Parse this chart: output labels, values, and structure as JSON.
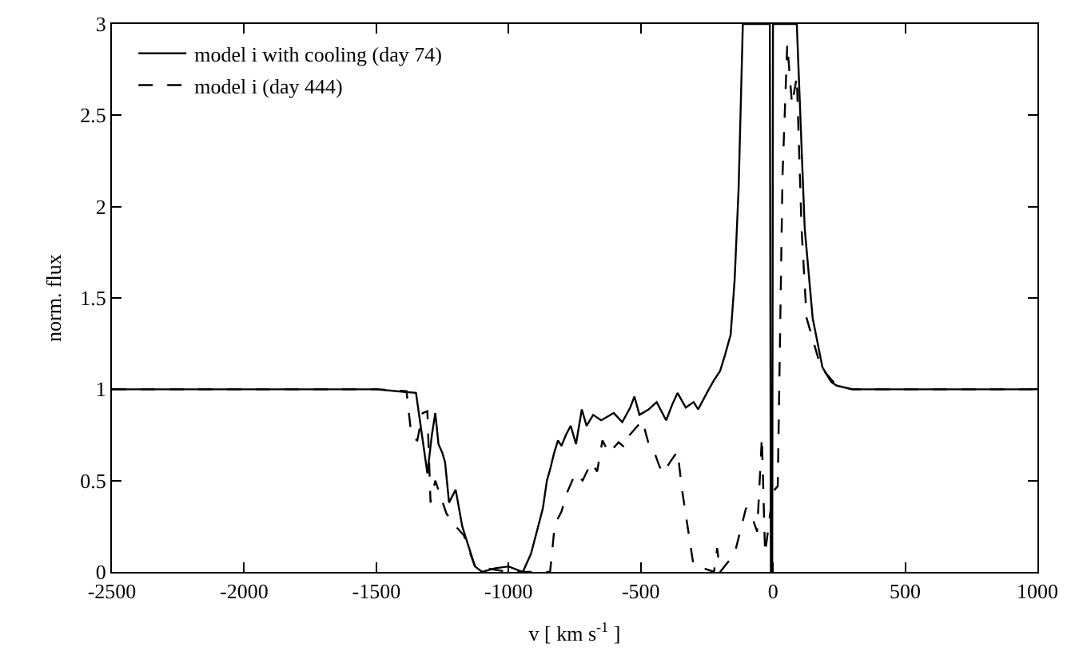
{
  "chart_data": {
    "type": "line",
    "xlabel": "v [ km s$^{-1}$ ]",
    "ylabel": "norm. flux",
    "xlim": [
      -2500,
      1000
    ],
    "xticks": [
      -2500,
      -2000,
      -1500,
      -1000,
      -500,
      0,
      500,
      1000
    ],
    "ylim": [
      0,
      3
    ],
    "yticks": [
      0,
      0.5,
      1,
      1.5,
      2,
      2.5,
      3
    ],
    "legend": "top left",
    "marker": "none",
    "series": [
      {
        "name": "model i with cooling (day 74)",
        "color": "#000000",
        "line_style": "solid",
        "x": [
          -2500,
          -1500,
          -1350,
          -1307,
          -1290,
          -1277,
          -1265,
          -1250,
          -1240,
          -1225,
          -1200,
          -1175,
          -1160,
          -1127,
          -1100,
          -1050,
          -1000,
          -946,
          -915,
          -886,
          -870,
          -855,
          -843,
          -828,
          -813,
          -800,
          -783,
          -765,
          -745,
          -723,
          -705,
          -680,
          -650,
          -602,
          -570,
          -540,
          -524,
          -505,
          -470,
          -440,
          -404,
          -380,
          -361,
          -330,
          -300,
          -283,
          -250,
          -223,
          -200,
          -181,
          -160,
          -145,
          -130,
          -114,
          -12,
          -8,
          -3,
          0,
          90,
          120,
          150,
          187,
          220,
          241,
          300,
          500,
          1000
        ],
        "values": [
          1,
          1,
          0.98,
          0.54,
          0.75,
          0.87,
          0.7,
          0.65,
          0.6,
          0.38,
          0.45,
          0.25,
          0.18,
          0.03,
          0,
          0.02,
          0.03,
          0,
          0.1,
          0.26,
          0.35,
          0.5,
          0.56,
          0.65,
          0.72,
          0.69,
          0.75,
          0.8,
          0.7,
          0.89,
          0.8,
          0.86,
          0.83,
          0.87,
          0.82,
          0.9,
          0.96,
          0.86,
          0.89,
          0.93,
          0.83,
          0.92,
          0.98,
          0.9,
          0.93,
          0.89,
          0.98,
          1.05,
          1.1,
          1.19,
          1.3,
          1.6,
          2.1,
          3,
          3,
          0,
          0,
          3,
          3,
          1.88,
          1.39,
          1.12,
          1.04,
          1.02,
          1,
          1,
          1
        ]
      },
      {
        "name": "model i (day 444)",
        "color": "#000000",
        "line_style": "dashed",
        "x": [
          -2500,
          -1500,
          -1386,
          -1367,
          -1345,
          -1325,
          -1307,
          -1295,
          -1277,
          -1235,
          -1200,
          -1169,
          -1127,
          -1000,
          -900,
          -843,
          -825,
          -800,
          -777,
          -747,
          -720,
          -687,
          -665,
          -645,
          -620,
          -584,
          -560,
          -542,
          -494,
          -470,
          -452,
          -430,
          -416,
          -390,
          -361,
          -343,
          -301,
          -223,
          -211,
          -200,
          -145,
          -102,
          -84,
          -60,
          -42,
          -30,
          0,
          18,
          36,
          54,
          72,
          90,
          108,
          127,
          181,
          241,
          300,
          500,
          1000
        ],
        "values": [
          1,
          1,
          0.99,
          0.74,
          0.72,
          0.87,
          0.88,
          0.38,
          0.5,
          0.32,
          0.25,
          0.2,
          0.03,
          0,
          0,
          0,
          0.26,
          0.33,
          0.44,
          0.54,
          0.5,
          0.6,
          0.55,
          0.72,
          0.65,
          0.71,
          0.68,
          0.75,
          0.83,
          0.7,
          0.67,
          0.58,
          0.54,
          0.6,
          0.66,
          0.44,
          0.04,
          0,
          0.13,
          0,
          0.1,
          0.35,
          0.32,
          0.22,
          0.74,
          0.1,
          0.44,
          0.47,
          2.17,
          2.89,
          2.56,
          2.71,
          1.88,
          1.39,
          1.12,
          1.02,
          1,
          1,
          1
        ]
      }
    ]
  }
}
